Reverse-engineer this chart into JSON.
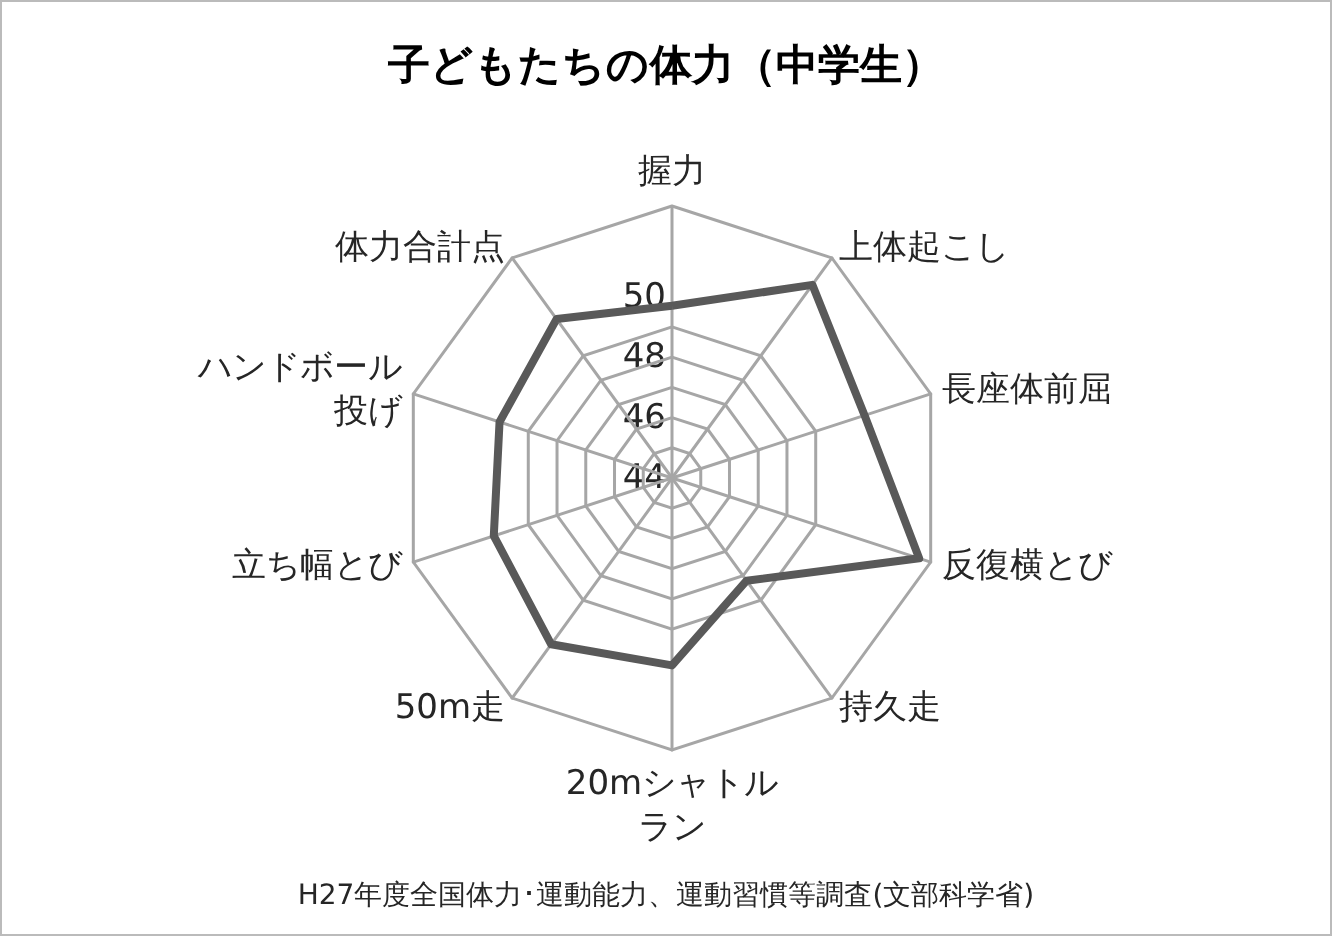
{
  "chart_data": {
    "type": "radar",
    "title": "子どもたちの体力（中学生）",
    "categories": [
      "握力",
      "上体起こし",
      "長座体前屈",
      "反復横とび",
      "持久走",
      "20mシャトルラン",
      "50m走",
      "立ち幅とび",
      "ハンドボール投げ",
      "体力合計点"
    ],
    "series": [
      {
        "color": "#595959",
        "values": [
          49.7,
          51.9,
          50.7,
          52.6,
          48.2,
          50.2,
          50.8,
          50.2,
          50.0,
          50.5
        ]
      }
    ],
    "ylim": [
      44,
      53
    ],
    "yticks": [
      44,
      46,
      48,
      50
    ],
    "grid": true,
    "marker": "none",
    "line_style": "solid",
    "annotations": [
      "H27年度全国体力･運動能力、運動習慣等調査(文部科学省)"
    ]
  }
}
